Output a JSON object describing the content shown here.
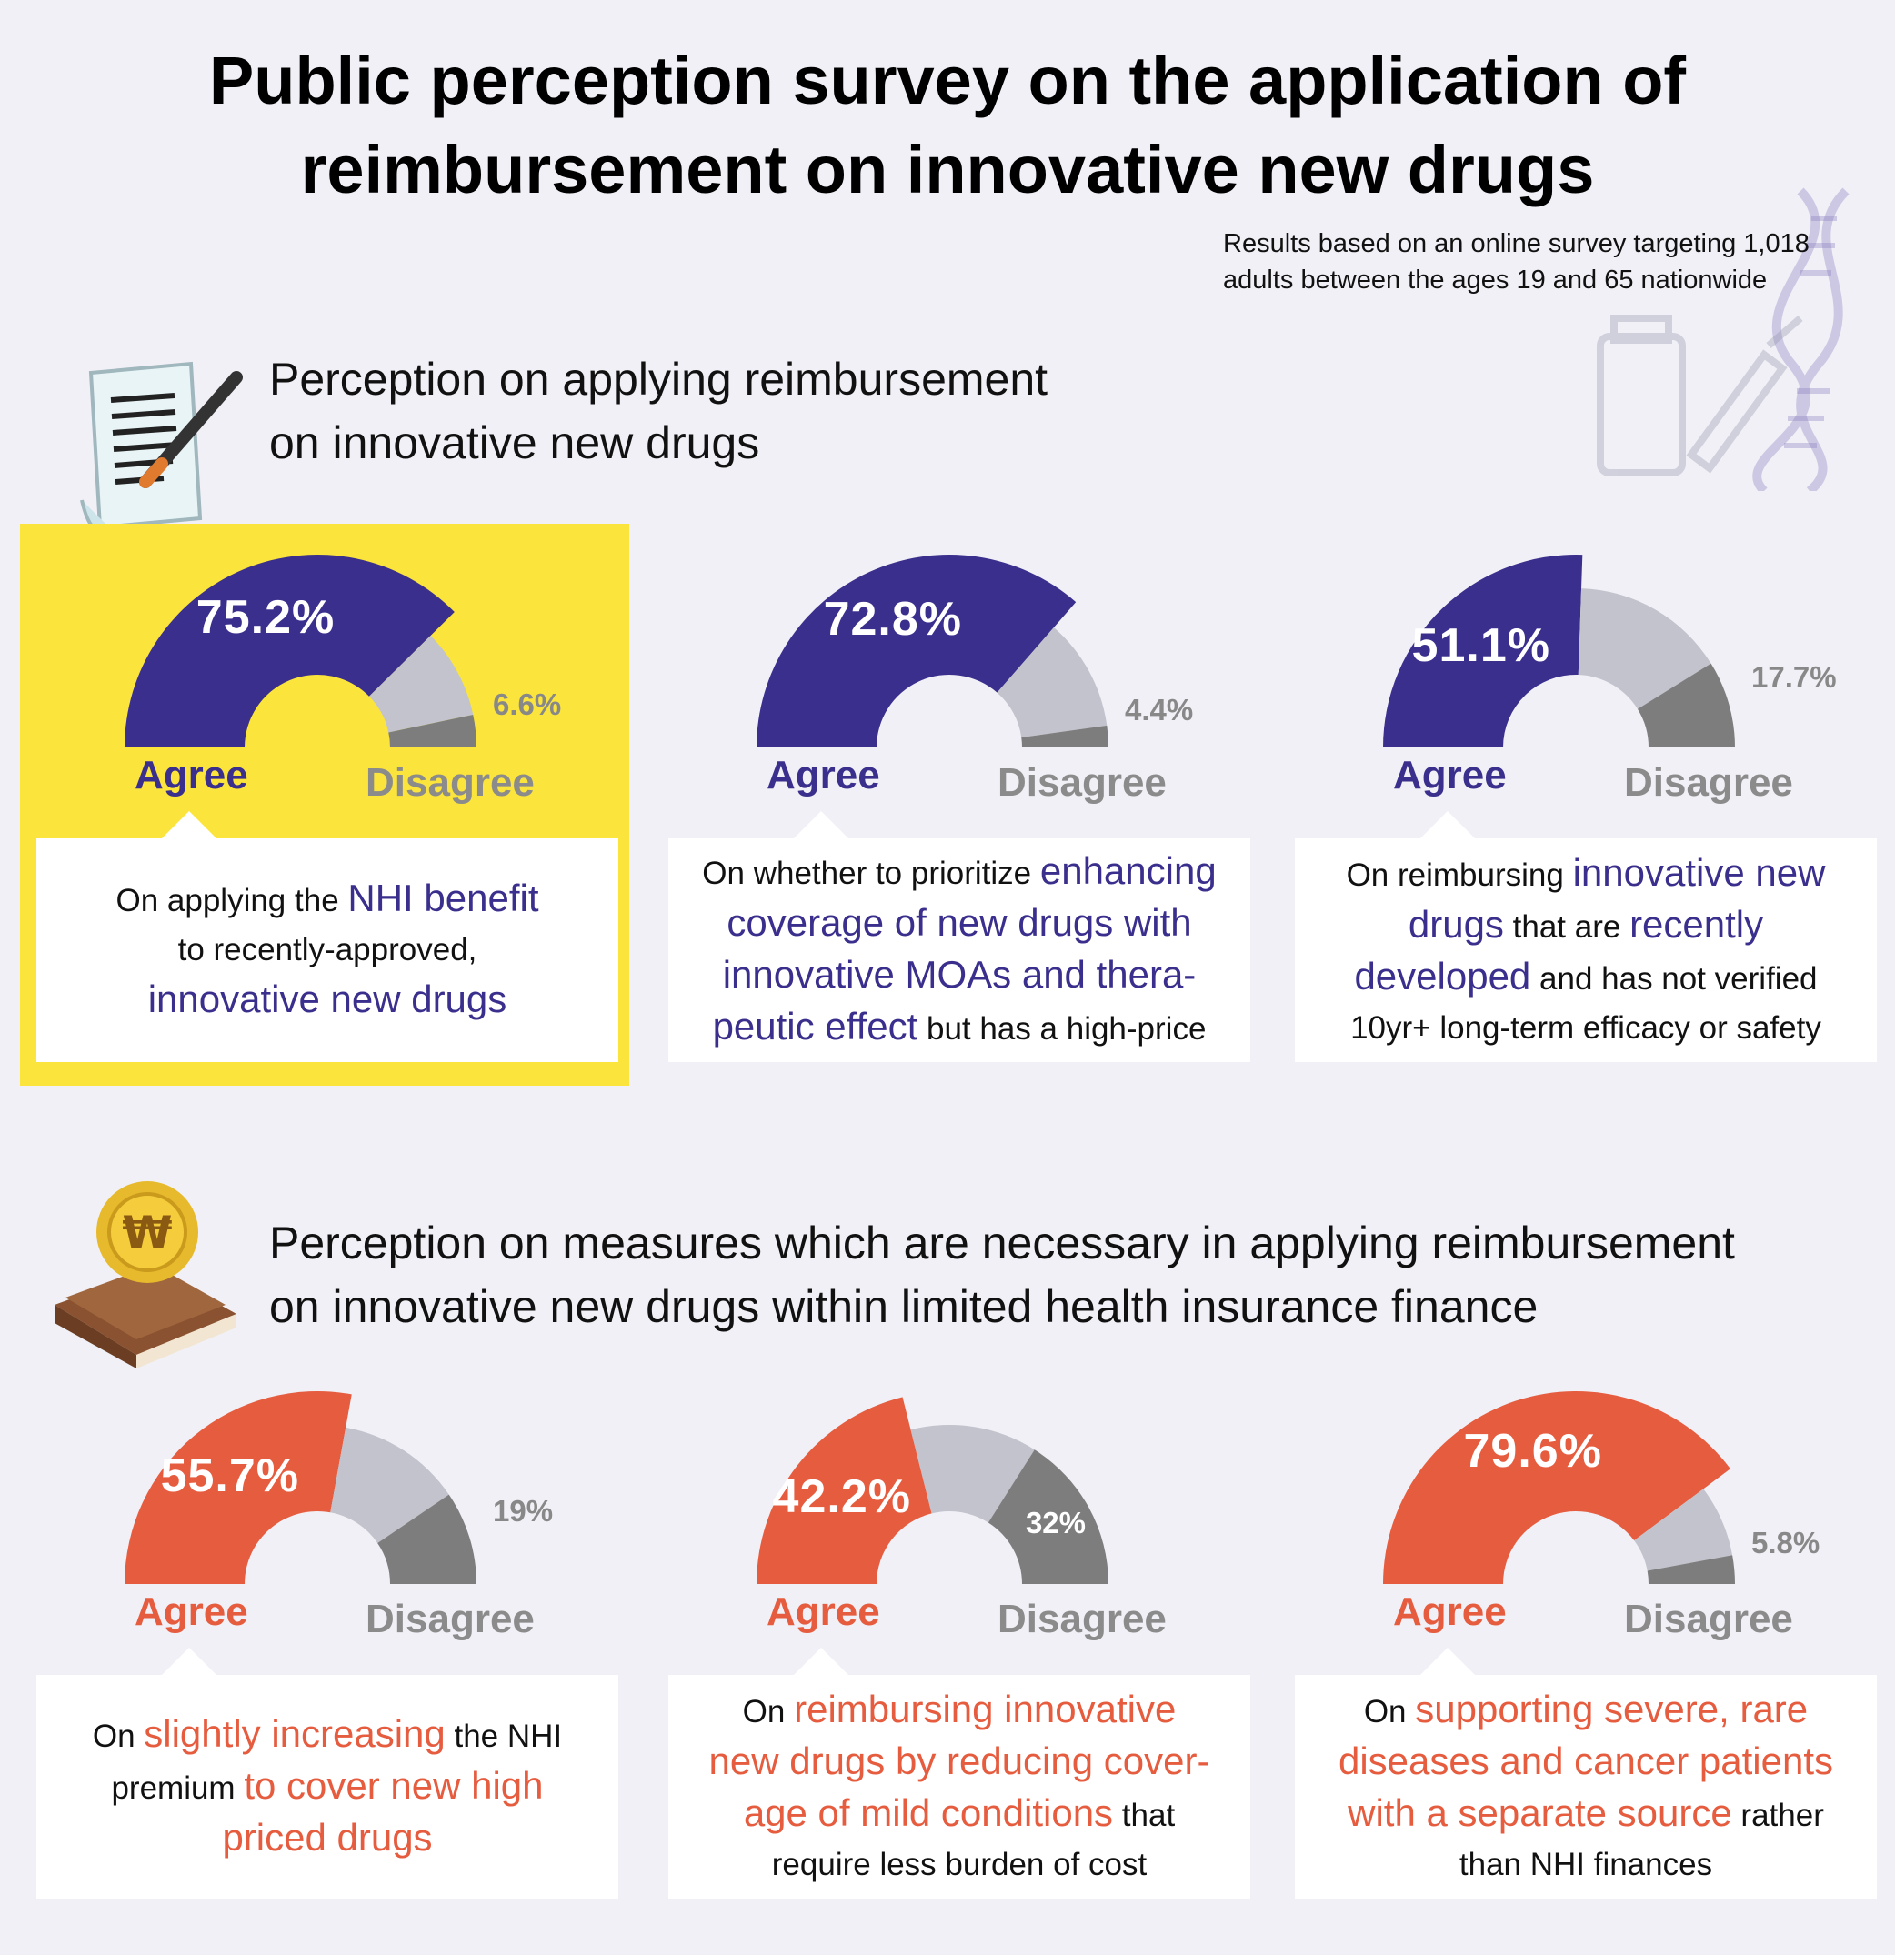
{
  "title": {
    "line1": "Public perception survey on the application of",
    "line2": "reimbursement on innovative new drugs"
  },
  "note": {
    "line1": "Results based on an online survey targeting 1,018",
    "line2": "adults between the ages 19 and 65 nationwide"
  },
  "section1": {
    "line1": "Perception on applying reimbursement",
    "line2": "on innovative new drugs"
  },
  "section2": {
    "line1": "Perception on measures which are necessary in applying reimbursement",
    "line2": "on innovative new drugs within limited health insurance finance"
  },
  "labels": {
    "agree": "Agree",
    "disagree": "Disagree"
  },
  "colors": {
    "blue": "#3a2f8c",
    "orange": "#e65c3f",
    "light_gray": "#c2c3cc",
    "dark_gray": "#7d7d7d",
    "highlight": "#fbe43c",
    "background": "#f0f0f6"
  },
  "icons": {
    "section1": "document-pen-icon",
    "section2": "coin-book-icon",
    "decoration": "dna-vial-syringe-icon",
    "won_symbol": "₩"
  },
  "chart_data": [
    {
      "type": "gauge",
      "section": 1,
      "values": {
        "agree": 75.2,
        "neutral": 18.2,
        "disagree": 6.6
      },
      "labels": {
        "agree": "75.2%",
        "disagree": "6.6%"
      },
      "highlighted": true,
      "desc_parts": [
        {
          "t": "On applying the ",
          "hl": false
        },
        {
          "t": "NHI benefit",
          "hl": true
        },
        {
          "t": "to recently-approved,",
          "hl": false,
          "br": true
        },
        {
          "t": "innovative new drugs",
          "hl": true,
          "br": true
        }
      ]
    },
    {
      "type": "gauge",
      "section": 1,
      "values": {
        "agree": 72.8,
        "neutral": 22.8,
        "disagree": 4.4
      },
      "labels": {
        "agree": "72.8%",
        "disagree": "4.4%"
      },
      "desc_parts": [
        {
          "t": "On whether to prioritize ",
          "hl": false
        },
        {
          "t": "enhancing",
          "hl": true
        },
        {
          "t": "coverage of new drugs with",
          "hl": true,
          "br": true
        },
        {
          "t": "innovative MOAs and thera-",
          "hl": true,
          "br": true
        },
        {
          "t": "peutic effect",
          "hl": true,
          "br": true
        },
        {
          "t": " but has a high-price",
          "hl": false
        }
      ]
    },
    {
      "type": "gauge",
      "section": 1,
      "values": {
        "agree": 51.1,
        "neutral": 31.2,
        "disagree": 17.7
      },
      "labels": {
        "agree": "51.1%",
        "disagree": "17.7%"
      },
      "desc_parts": [
        {
          "t": "On reimbursing ",
          "hl": false
        },
        {
          "t": "innovative new",
          "hl": true
        },
        {
          "t": "drugs",
          "hl": true,
          "br": true
        },
        {
          "t": " that are ",
          "hl": false
        },
        {
          "t": "recently",
          "hl": true
        },
        {
          "t": "developed",
          "hl": true,
          "br": true
        },
        {
          "t": " and has not verified",
          "hl": false
        },
        {
          "t": "10yr+ long-term efficacy or safety",
          "hl": false,
          "br": true
        }
      ]
    },
    {
      "type": "gauge",
      "section": 2,
      "values": {
        "agree": 55.7,
        "neutral": 25.3,
        "disagree": 19
      },
      "labels": {
        "agree": "55.7%",
        "disagree": "19%"
      },
      "desc_parts": [
        {
          "t": "On ",
          "hl": false
        },
        {
          "t": "slightly increasing",
          "hl": true
        },
        {
          "t": " the NHI",
          "hl": false
        },
        {
          "t": "premium ",
          "hl": false,
          "br": true
        },
        {
          "t": "to cover new high",
          "hl": true
        },
        {
          "t": "priced drugs",
          "hl": true,
          "br": true
        }
      ]
    },
    {
      "type": "gauge",
      "section": 2,
      "values": {
        "agree": 42.2,
        "neutral": 25.8,
        "disagree": 32
      },
      "labels": {
        "agree": "42.2%",
        "disagree": "32%"
      },
      "desc_parts": [
        {
          "t": "On ",
          "hl": false
        },
        {
          "t": "reimbursing innovative",
          "hl": true
        },
        {
          "t": "new drugs by reducing cover-",
          "hl": true,
          "br": true
        },
        {
          "t": "age of mild conditions",
          "hl": true,
          "br": true
        },
        {
          "t": " that",
          "hl": false
        },
        {
          "t": "require less burden of cost",
          "hl": false,
          "br": true
        }
      ]
    },
    {
      "type": "gauge",
      "section": 2,
      "values": {
        "agree": 79.6,
        "neutral": 14.6,
        "disagree": 5.8
      },
      "labels": {
        "agree": "79.6%",
        "disagree": "5.8%"
      },
      "desc_parts": [
        {
          "t": "On ",
          "hl": false
        },
        {
          "t": "supporting severe, rare",
          "hl": true
        },
        {
          "t": "diseases and cancer patients",
          "hl": true,
          "br": true
        },
        {
          "t": "with a separate source",
          "hl": true,
          "br": true
        },
        {
          "t": " rather",
          "hl": false
        },
        {
          "t": "than NHI finances",
          "hl": false,
          "br": true
        }
      ]
    }
  ]
}
